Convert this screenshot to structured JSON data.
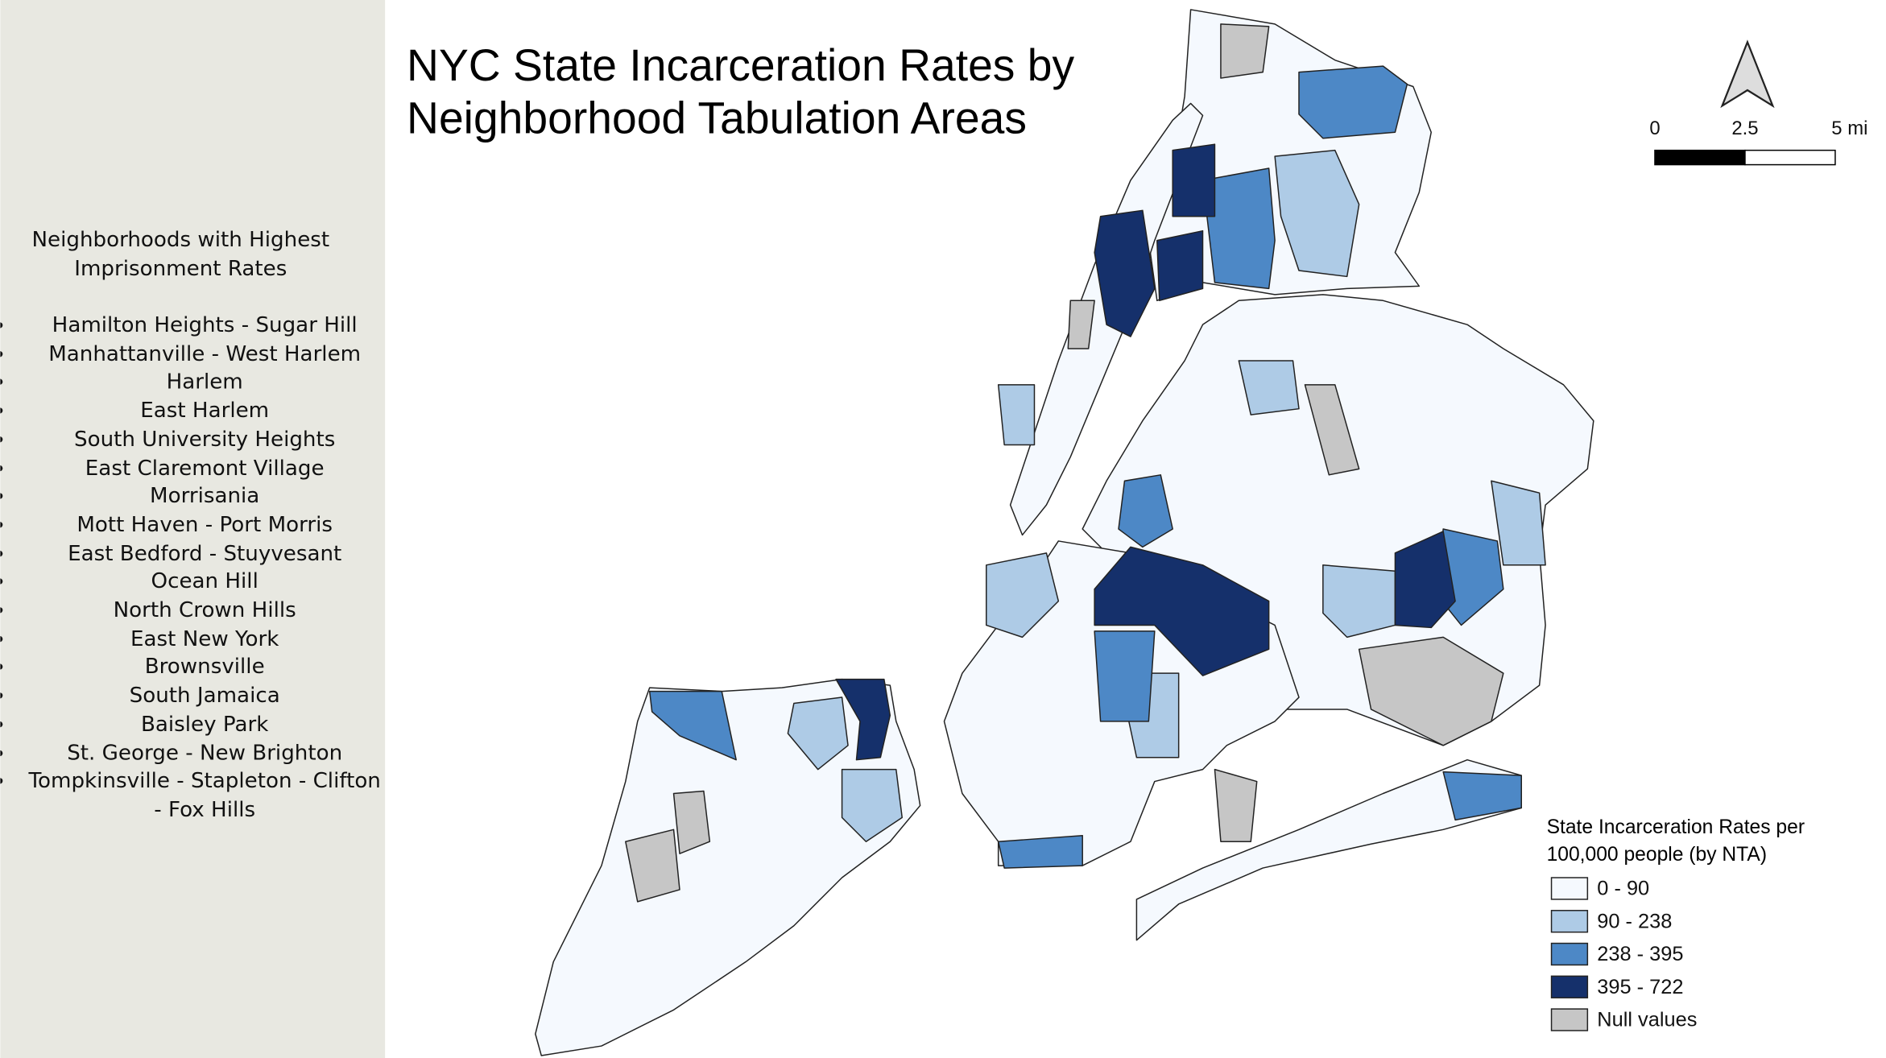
{
  "title": "NYC State Incarceration Rates by Neighborhood Tabulation Areas",
  "sidebar": {
    "heading": "Neighborhoods with Highest Imprisonment Rates",
    "items": [
      "Hamilton Heights - Sugar Hill",
      "Manhattanville - West Harlem",
      "Harlem",
      "East Harlem",
      "South University Heights",
      "East Claremont Village",
      "Morrisania",
      "Mott Haven - Port Morris",
      "East Bedford - Stuyvesant",
      "Ocean Hill",
      "North Crown Hills",
      "East New York",
      "Brownsville",
      "South Jamaica",
      "Baisley Park",
      "St. George - New Brighton",
      "Tompkinsville - Stapleton - Clifton - Fox Hills"
    ]
  },
  "scale_bar": {
    "labels": [
      "0",
      "2.5",
      "5 mi"
    ]
  },
  "legend": {
    "title": "State Incarceration Rates per 100,000 people (by NTA)",
    "classes": [
      {
        "label": "0 - 90",
        "color": "#f5f9fe"
      },
      {
        "label": "90 - 238",
        "color": "#aecbe6"
      },
      {
        "label": "238 - 395",
        "color": "#4d88c6"
      },
      {
        "label": "395 - 722",
        "color": "#15306b"
      },
      {
        "label": "Null values",
        "color": "#c6c6c6"
      }
    ]
  }
}
